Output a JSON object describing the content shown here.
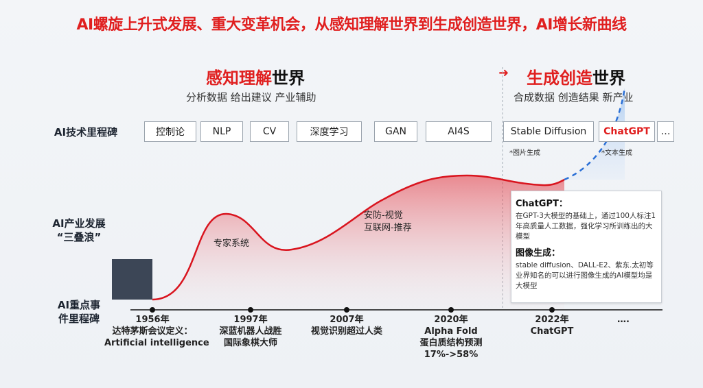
{
  "title": "AI螺旋上升式发展、重大变革机会，从感知理解世界到生成创造世界，AI增长新曲线",
  "era_left": {
    "title_red": "感知理解",
    "title_black": "世界",
    "subtitle": "分析数据 给出建议 产业辅助"
  },
  "era_right": {
    "arrow": "➜",
    "title_red": "生成创造",
    "title_black": "世界",
    "subtitle": "合成数据 创造结果 新产业"
  },
  "row_labels": {
    "milestones": "AI技术里程碑",
    "industry_l1": "AI产业发展",
    "industry_l2": "“三叠浪”",
    "events_l1": "AI重点事",
    "events_l2": "件里程碑"
  },
  "tech_milestones": [
    "控制论",
    "NLP",
    "CV",
    "深度学习",
    "GAN",
    "AI4S",
    "Stable Diffusion",
    "ChatGPT",
    "…"
  ],
  "tech_notes": {
    "stable_diffusion": "*图片生成",
    "chatgpt": "*文本生成"
  },
  "wave_labels": {
    "expert": "专家系统",
    "vision_l1": "安防-视觉",
    "vision_l2": "互联网-推荐"
  },
  "events": [
    {
      "year": "1956年",
      "l1": "达特茅斯会议定义：",
      "l2": "Artificial intelligence",
      "l3": ""
    },
    {
      "year": "1997年",
      "l1": "深蓝机器人战胜",
      "l2": "国际象棋大师",
      "l3": ""
    },
    {
      "year": "2007年",
      "l1": "视觉识别超过人类",
      "l2": "",
      "l3": ""
    },
    {
      "year": "2020年",
      "l1": "Alpha Fold",
      "l2": "蛋白质结构预测",
      "l3": "17%->58%"
    },
    {
      "year": "2022年",
      "l1": "ChatGPT",
      "l2": "",
      "l3": ""
    },
    {
      "year": "….",
      "l1": "",
      "l2": "",
      "l3": ""
    }
  ],
  "chatgpt_box": {
    "heading1": "ChatGPT：",
    "body1": "在GPT-3大模型的基础上，通过100人标注1年高质量人工数据，强化学习所训练出的大模型",
    "heading2": "图像生成：",
    "body2": "stable diffusion、DALL-E2、紫东.太初等业界知名的可以进行图像生成的AI模型均是大模型"
  },
  "colors": {
    "accent_red": "#e01f1f",
    "curve_red": "#d9141e",
    "dashed_blue": "#2a6fd6",
    "dark_block": "#3c4656"
  }
}
